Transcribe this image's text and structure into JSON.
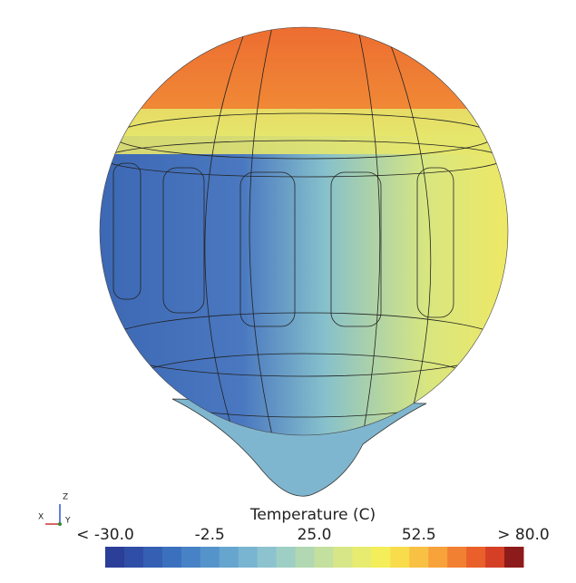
{
  "chart_data": {
    "type": "colorbar",
    "title": "Temperature (C)",
    "xlim": [
      -30,
      80
    ],
    "xticks": [
      {
        "value": -30,
        "label": "< -30.0"
      },
      -2.5,
      {
        "value": 25,
        "label": "25.0"
      },
      52.5,
      {
        "value": 80,
        "label": "> 80.0"
      }
    ],
    "colors": [
      "#2b3e98",
      "#2f4ea6",
      "#345fb3",
      "#3b70be",
      "#4682c5",
      "#5594ca",
      "#66a5ce",
      "#79b5d0",
      "#8cc3cf",
      "#9ecfc5",
      "#b1d8b3",
      "#c4e09e",
      "#d7e788",
      "#e7ec70",
      "#f4ee5a",
      "#f8dc4c",
      "#f9c143",
      "#f7a23b",
      "#f28032",
      "#e9602b",
      "#d43f26",
      "#8e1b1b"
    ],
    "triad": {
      "z": "Z",
      "x": "X",
      "y": "Y"
    }
  }
}
